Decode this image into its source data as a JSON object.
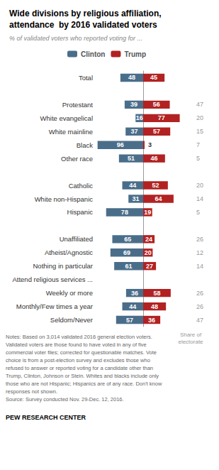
{
  "chart_data": {
    "type": "bar",
    "orientation": "horizontal",
    "title": "Wide divisions by religious affiliation,\nattendance  by 2016 validated voters",
    "subtitle": "% of validated voters who reported voting for ...",
    "categories": [
      "Total",
      null,
      "Protestant",
      "White evangelical",
      "White mainline",
      "Black",
      "Other race",
      null,
      "Catholic",
      "White non-Hispanic",
      "Hispanic",
      null,
      "Unaffiliated",
      "Atheist/Agnostic",
      "Nothing in particular",
      "Attend religious services ...",
      "Weekly or more",
      "Monthly/Few times a year",
      "Seldom/Never"
    ],
    "series": [
      {
        "name": "Clinton",
        "color": "#4a6e8a",
        "values": [
          48,
          null,
          39,
          16,
          37,
          96,
          51,
          null,
          44,
          31,
          78,
          null,
          65,
          69,
          61,
          null,
          36,
          44,
          57
        ]
      },
      {
        "name": "Trump",
        "color": "#b22222",
        "values": [
          45,
          null,
          56,
          77,
          57,
          3,
          46,
          null,
          52,
          64,
          19,
          null,
          24,
          20,
          27,
          null,
          58,
          48,
          36
        ]
      }
    ],
    "share_title": "Share of\nelectorate",
    "share": [
      null,
      null,
      47,
      20,
      15,
      7,
      5,
      null,
      20,
      14,
      5,
      null,
      26,
      12,
      14,
      null,
      26,
      26,
      47
    ],
    "xlim": [
      0,
      100
    ],
    "xticks": [
      0,
      100
    ],
    "tick_labels": "y",
    "grid": false,
    "legend": "top",
    "data_labels": true,
    "notes": [
      "Notes: Based on 3,014 validated 2016 general election voters.",
      "Validated voters are those found to have voted in any of five",
      "commercial voter files; corrected for questionable matches. Vote",
      "choice is from a post-election survey and excludes those who",
      "refused to answer or reported voting for a candidate other than",
      "Trump, Clinton, Johnson or Stein. Whites and blacks include only",
      "those who are not Hispanic; Hispanics are of any race. Don't know",
      "responses not shown.",
      "Source: Survey conducted Nov. 29-Dec. 12, 2016."
    ],
    "credit": "PEW RESEARCH CENTER"
  }
}
